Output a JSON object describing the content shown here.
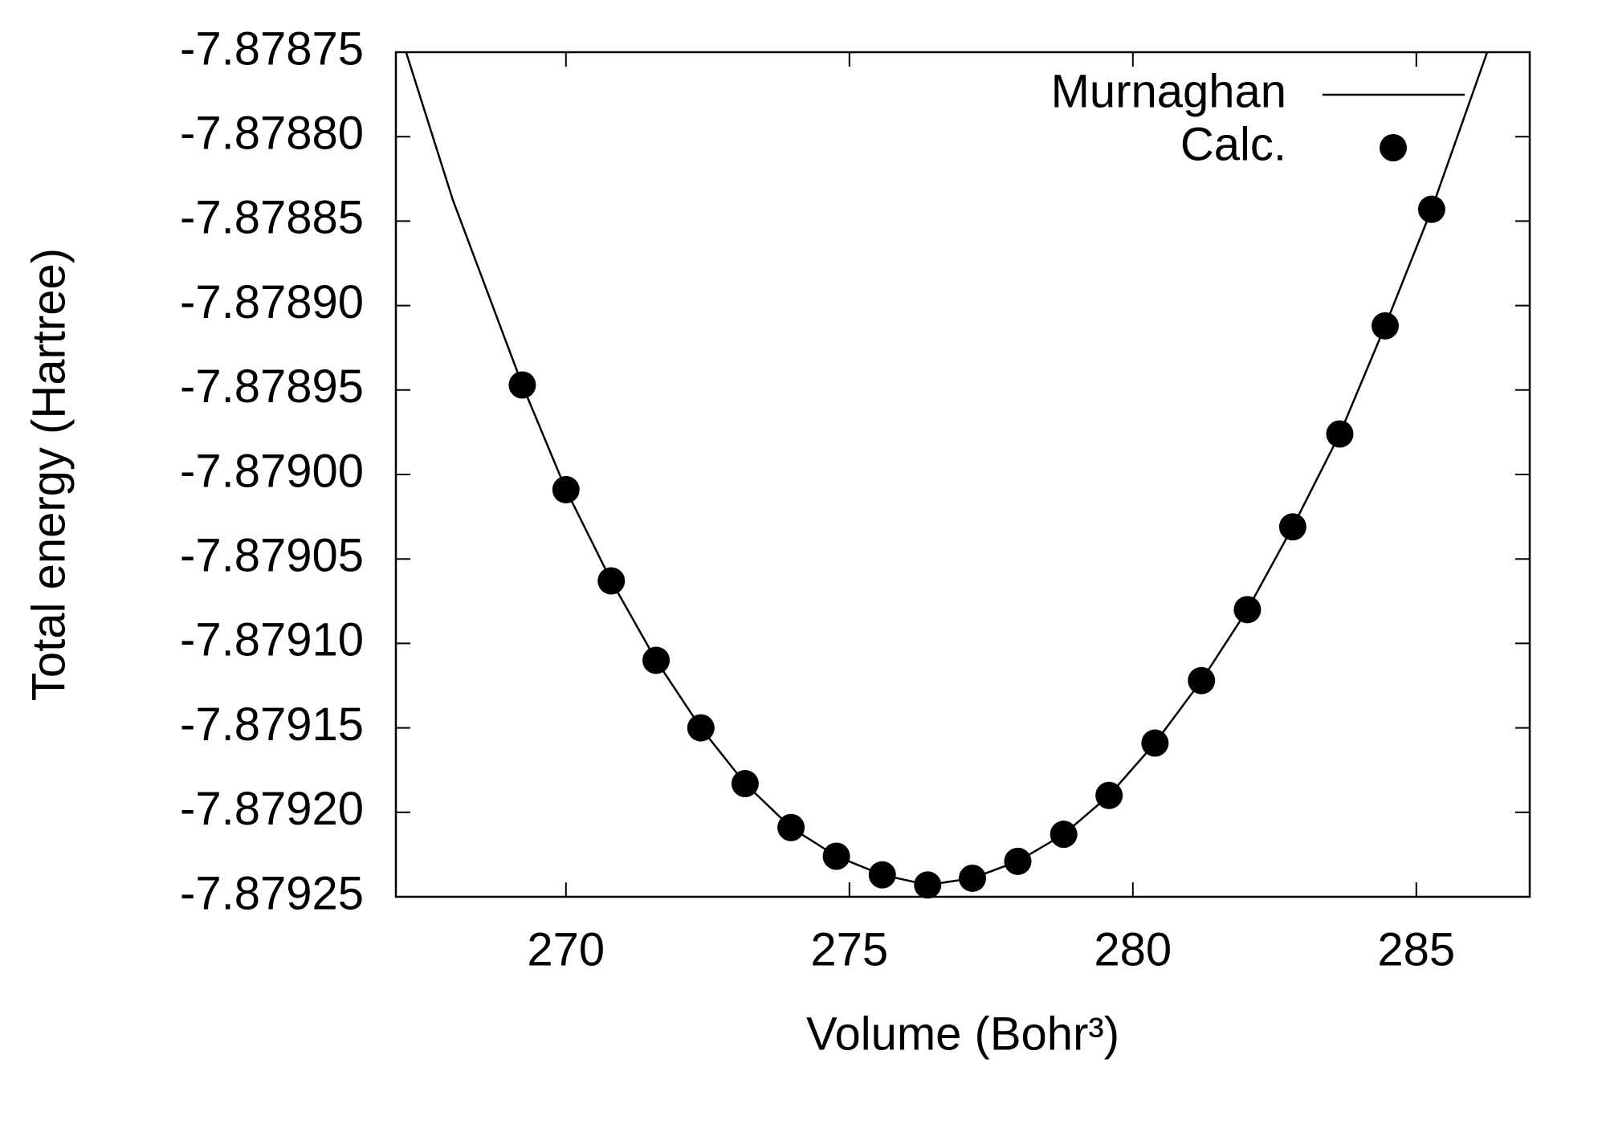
{
  "chart_data": {
    "type": "scatter",
    "xlabel": "Volume (Bohr³)",
    "ylabel": "Total energy (Hartree)",
    "xlim": [
      267,
      287
    ],
    "xticks": [
      270,
      275,
      280,
      285
    ],
    "ylim": [
      -7.87925,
      -7.87875
    ],
    "yticks": [
      -7.87925,
      {
        "value": -7.8792,
        "label": "-7.87920"
      },
      -7.87915,
      {
        "value": -7.8791,
        "label": "-7.87910"
      },
      -7.87905,
      {
        "value": -7.879,
        "label": "-7.87900"
      },
      -7.87895,
      {
        "value": -7.8789,
        "label": "-7.87890"
      },
      -7.87885,
      {
        "value": -7.8788,
        "label": "-7.87880"
      },
      -7.87875
    ],
    "legend": "top right",
    "series": [
      {
        "name": "Murnaghan",
        "style": "line",
        "color": "#000000",
        "x": [
          267.18,
          268.0,
          269.23,
          270.0,
          270.8,
          271.59,
          272.38,
          273.16,
          273.97,
          274.77,
          275.58,
          276.38,
          277.17,
          277.97,
          278.78,
          279.58,
          280.39,
          281.21,
          282.02,
          282.82,
          283.65,
          284.45,
          285.27,
          286.25
        ],
        "values": [
          -7.87875,
          -7.878837,
          -7.878947,
          -7.879009,
          -7.879063,
          -7.87911,
          -7.87915,
          -7.879183,
          -7.879209,
          -7.879226,
          -7.879237,
          -7.879243,
          -7.879239,
          -7.879229,
          -7.879213,
          -7.87919,
          -7.879159,
          -7.879122,
          -7.87908,
          -7.879031,
          -7.878976,
          -7.878912,
          -7.878843,
          -7.87875
        ]
      },
      {
        "name": "Calc.",
        "style": "points",
        "color": "#000000",
        "x": [
          269.23,
          270.0,
          270.8,
          271.59,
          272.38,
          273.16,
          273.97,
          274.77,
          275.58,
          276.38,
          277.17,
          277.97,
          278.78,
          279.58,
          280.39,
          281.21,
          282.02,
          282.82,
          283.65,
          284.45,
          285.27
        ],
        "values": [
          -7.878947,
          -7.879009,
          -7.879063,
          -7.87911,
          -7.87915,
          -7.879183,
          -7.879209,
          -7.879226,
          -7.879237,
          -7.879243,
          -7.879239,
          -7.879229,
          -7.879213,
          -7.87919,
          -7.879159,
          -7.879122,
          -7.87908,
          -7.879031,
          -7.878976,
          -7.878912,
          -7.878843
        ]
      }
    ]
  }
}
